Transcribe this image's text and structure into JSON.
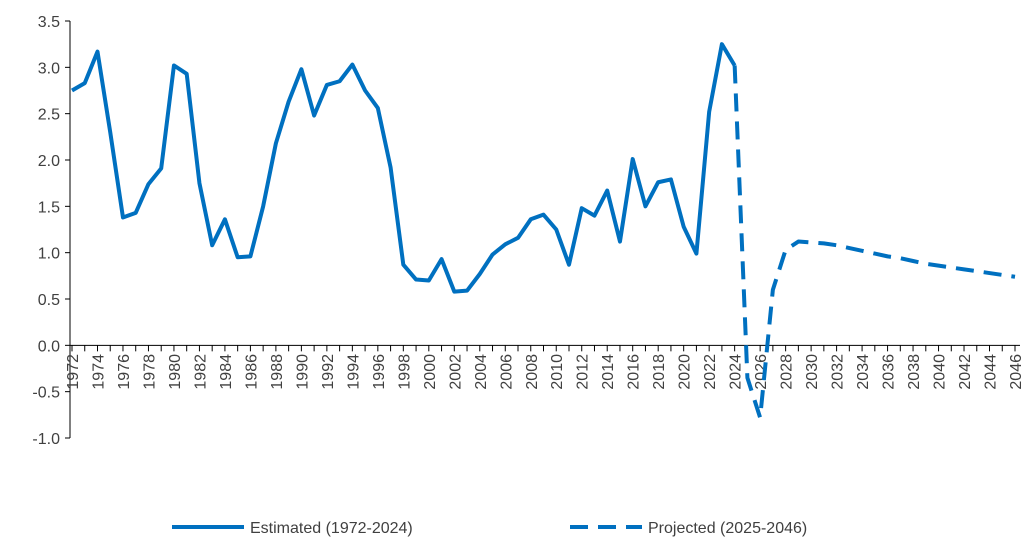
{
  "chart_data": {
    "type": "line",
    "x": [
      1972,
      1973,
      1974,
      1975,
      1976,
      1977,
      1978,
      1979,
      1980,
      1981,
      1982,
      1983,
      1984,
      1985,
      1986,
      1987,
      1988,
      1989,
      1990,
      1991,
      1992,
      1993,
      1994,
      1995,
      1996,
      1997,
      1998,
      1999,
      2000,
      2001,
      2002,
      2003,
      2004,
      2005,
      2006,
      2007,
      2008,
      2009,
      2010,
      2011,
      2012,
      2013,
      2014,
      2015,
      2016,
      2017,
      2018,
      2019,
      2020,
      2021,
      2022,
      2023,
      2024,
      2025,
      2026,
      2027,
      2028,
      2029,
      2030,
      2031,
      2032,
      2033,
      2034,
      2035,
      2036,
      2037,
      2038,
      2039,
      2040,
      2041,
      2042,
      2043,
      2044,
      2045,
      2046
    ],
    "series": [
      {
        "name": "Estimated (1972-2024)",
        "color": "#0070c0",
        "dash": false,
        "values": [
          2.75,
          2.83,
          3.17,
          2.3,
          1.38,
          1.43,
          1.74,
          1.91,
          3.02,
          2.93,
          1.75,
          1.08,
          1.36,
          0.95,
          0.96,
          1.5,
          2.18,
          2.63,
          2.98,
          2.48,
          2.81,
          2.85,
          3.03,
          2.75,
          2.56,
          1.92,
          0.87,
          0.71,
          0.7,
          0.93,
          0.58,
          0.59,
          0.77,
          0.98,
          1.09,
          1.16,
          1.36,
          1.41,
          1.25,
          0.87,
          1.48,
          1.4,
          1.67,
          1.12,
          2.01,
          1.5,
          1.76,
          1.79,
          1.28,
          0.99,
          2.52,
          3.25,
          3.02,
          null,
          null,
          null,
          null,
          null,
          null,
          null,
          null,
          null,
          null,
          null,
          null,
          null,
          null,
          null,
          null,
          null,
          null,
          null,
          null,
          null,
          null
        ]
      },
      {
        "name": "Projected (2025-2046)",
        "color": "#0070c0",
        "dash": true,
        "values": [
          null,
          null,
          null,
          null,
          null,
          null,
          null,
          null,
          null,
          null,
          null,
          null,
          null,
          null,
          null,
          null,
          null,
          null,
          null,
          null,
          null,
          null,
          null,
          null,
          null,
          null,
          null,
          null,
          null,
          null,
          null,
          null,
          null,
          null,
          null,
          null,
          null,
          null,
          null,
          null,
          null,
          null,
          null,
          null,
          null,
          null,
          null,
          null,
          null,
          null,
          null,
          null,
          3.02,
          -0.35,
          -0.78,
          0.6,
          1.03,
          1.12,
          1.11,
          1.1,
          1.08,
          1.05,
          1.02,
          0.99,
          0.96,
          0.94,
          0.91,
          0.88,
          0.86,
          0.84,
          0.82,
          0.8,
          0.78,
          0.76,
          0.74
        ]
      }
    ],
    "xlim": [
      1972,
      2046
    ],
    "xticks": [
      1972,
      1974,
      1976,
      1978,
      1980,
      1982,
      1984,
      1986,
      1988,
      1990,
      1992,
      1994,
      1996,
      1998,
      2000,
      2002,
      2004,
      2006,
      2008,
      2010,
      2012,
      2014,
      2016,
      2018,
      2020,
      2022,
      2024,
      2026,
      2028,
      2030,
      2032,
      2034,
      2036,
      2038,
      2040,
      2042,
      2044,
      2046
    ],
    "ylim": [
      -1,
      3.5
    ],
    "yticks": [
      {
        "value": -1,
        "label": "-1.0"
      },
      -0.5,
      {
        "value": 0,
        "label": "0.0"
      },
      0.5,
      {
        "value": 1,
        "label": "1.0"
      },
      1.5,
      {
        "value": 2,
        "label": "2.0"
      },
      2.5,
      {
        "value": 3,
        "label": "3.0"
      },
      3.5
    ],
    "legend": "bottom"
  }
}
